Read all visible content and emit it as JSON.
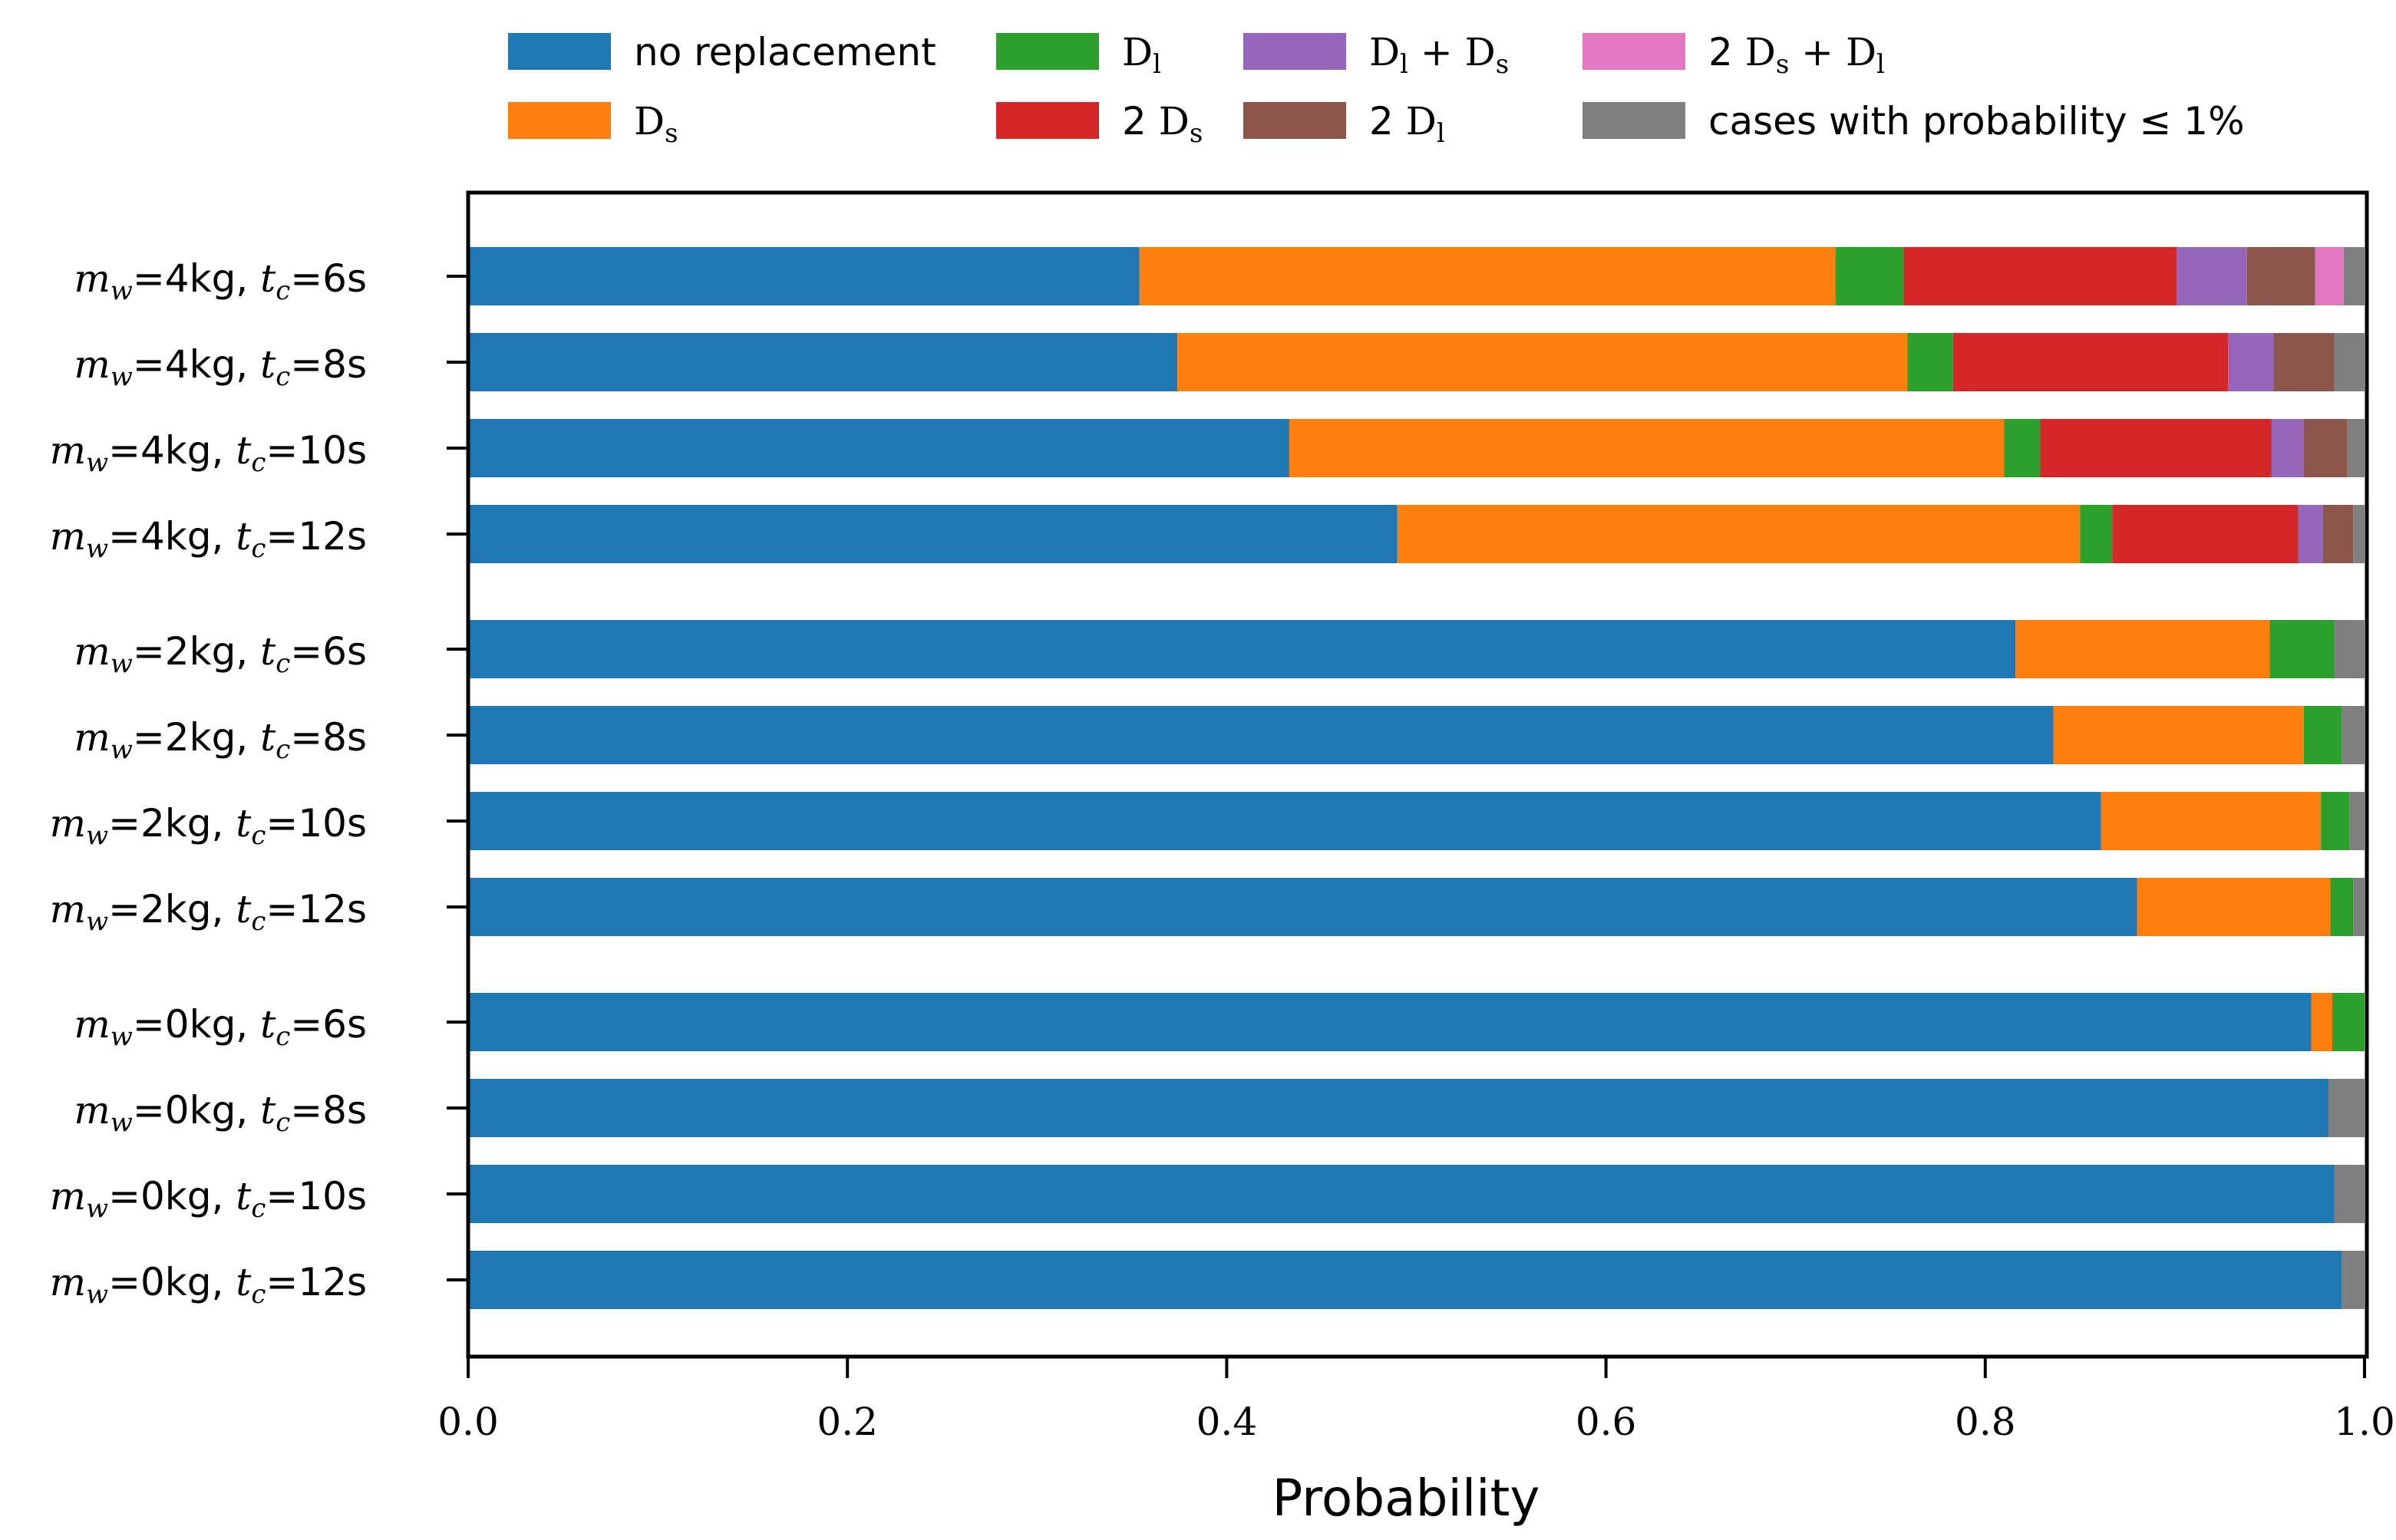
{
  "chart_data": {
    "type": "bar",
    "orientation": "horizontal",
    "stacked": true,
    "xlabel": "Probability",
    "xlim": [
      0,
      1
    ],
    "xticks": [
      "0.0",
      "0.2",
      "0.4",
      "0.6",
      "0.8",
      "1.0"
    ],
    "legend_position": "top",
    "legend": [
      {
        "key": "none",
        "name": "no replacement",
        "color": "#1f77b4"
      },
      {
        "key": "ds",
        "name": "Ds",
        "color": "#ff7f0e"
      },
      {
        "key": "dl",
        "name": "Dl",
        "color": "#2ca02c"
      },
      {
        "key": "2ds",
        "name": "2 Ds",
        "color": "#d62728"
      },
      {
        "key": "dlds",
        "name": "Dl + Ds",
        "color": "#9467bd"
      },
      {
        "key": "2dl",
        "name": "2 Dl",
        "color": "#8c564b"
      },
      {
        "key": "2dsdl",
        "name": "2 Ds + Dl",
        "color": "#e377c2"
      },
      {
        "key": "rest",
        "name": "cases with probability ≤ 1%",
        "color": "#7f7f7f"
      }
    ],
    "rows": [
      {
        "mw": "4kg",
        "tc": "6s",
        "values": [
          0.354,
          0.367,
          0.036,
          0.144,
          0.037,
          0.036,
          0.015,
          0.011
        ]
      },
      {
        "mw": "4kg",
        "tc": "8s",
        "values": [
          0.374,
          0.385,
          0.024,
          0.145,
          0.024,
          0.032,
          0.0,
          0.016
        ]
      },
      {
        "mw": "4kg",
        "tc": "10s",
        "values": [
          0.433,
          0.377,
          0.019,
          0.122,
          0.017,
          0.023,
          0.0,
          0.009
        ]
      },
      {
        "mw": "4kg",
        "tc": "12s",
        "values": [
          0.49,
          0.36,
          0.017,
          0.098,
          0.013,
          0.016,
          0.0,
          0.006
        ]
      },
      {
        "mw": "2kg",
        "tc": "6s",
        "values": [
          0.816,
          0.134,
          0.034,
          0.0,
          0.0,
          0.0,
          0.0,
          0.016
        ]
      },
      {
        "mw": "2kg",
        "tc": "8s",
        "values": [
          0.836,
          0.132,
          0.02,
          0.0,
          0.0,
          0.0,
          0.0,
          0.012
        ]
      },
      {
        "mw": "2kg",
        "tc": "10s",
        "values": [
          0.861,
          0.116,
          0.015,
          0.0,
          0.0,
          0.0,
          0.0,
          0.008
        ]
      },
      {
        "mw": "2kg",
        "tc": "12s",
        "values": [
          0.88,
          0.102,
          0.012,
          0.0,
          0.0,
          0.0,
          0.0,
          0.006
        ]
      },
      {
        "mw": "0kg",
        "tc": "6s",
        "values": [
          0.972,
          0.011,
          0.017,
          0.0,
          0.0,
          0.0,
          0.0,
          0.0
        ]
      },
      {
        "mw": "0kg",
        "tc": "8s",
        "values": [
          0.981,
          0.0,
          0.0,
          0.0,
          0.0,
          0.0,
          0.0,
          0.019
        ]
      },
      {
        "mw": "0kg",
        "tc": "10s",
        "values": [
          0.984,
          0.0,
          0.0,
          0.0,
          0.0,
          0.0,
          0.0,
          0.016
        ]
      },
      {
        "mw": "0kg",
        "tc": "12s",
        "values": [
          0.988,
          0.0,
          0.0,
          0.0,
          0.0,
          0.0,
          0.0,
          0.012
        ]
      }
    ]
  }
}
